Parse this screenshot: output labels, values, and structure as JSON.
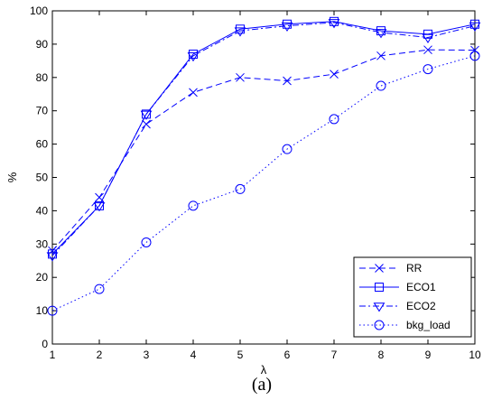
{
  "chart_data": {
    "type": "line",
    "title": "",
    "xlabel": "λ",
    "ylabel": "%",
    "caption": "(a)",
    "xlim": [
      1,
      10
    ],
    "ylim": [
      0,
      100
    ],
    "xticks": [
      "1",
      "2",
      "3",
      "4",
      "5",
      "6",
      "7",
      "8",
      "9",
      "10"
    ],
    "yticks": [
      "0",
      "10",
      "20",
      "30",
      "40",
      "50",
      "60",
      "70",
      "80",
      "90",
      "100"
    ],
    "grid": false,
    "legend_position": "bottom-right",
    "x": [
      1,
      2,
      3,
      4,
      5,
      6,
      7,
      8,
      9,
      10
    ],
    "series": [
      {
        "name": "RR",
        "linestyle": "dashed",
        "marker": "x",
        "color": "#0000ff",
        "values": [
          28,
          44,
          66,
          75.5,
          80,
          79,
          81,
          86.5,
          88.3,
          88.2
        ]
      },
      {
        "name": "ECO1",
        "linestyle": "solid",
        "marker": "square",
        "color": "#0000ff",
        "values": [
          27,
          41.5,
          69,
          87,
          94.5,
          96,
          96.8,
          94,
          93,
          96
        ]
      },
      {
        "name": "ECO2",
        "linestyle": "dashdot",
        "marker": "triangle-down",
        "color": "#0000ff",
        "values": [
          26.5,
          41.5,
          69,
          86.5,
          94,
          95.5,
          96.5,
          93.5,
          92,
          95.5
        ]
      },
      {
        "name": "bkg_load",
        "linestyle": "dotted",
        "marker": "circle",
        "color": "#0000ff",
        "values": [
          10,
          16.5,
          30.5,
          41.5,
          46.5,
          58.5,
          67.5,
          77.5,
          82.5,
          86.5
        ]
      }
    ]
  }
}
